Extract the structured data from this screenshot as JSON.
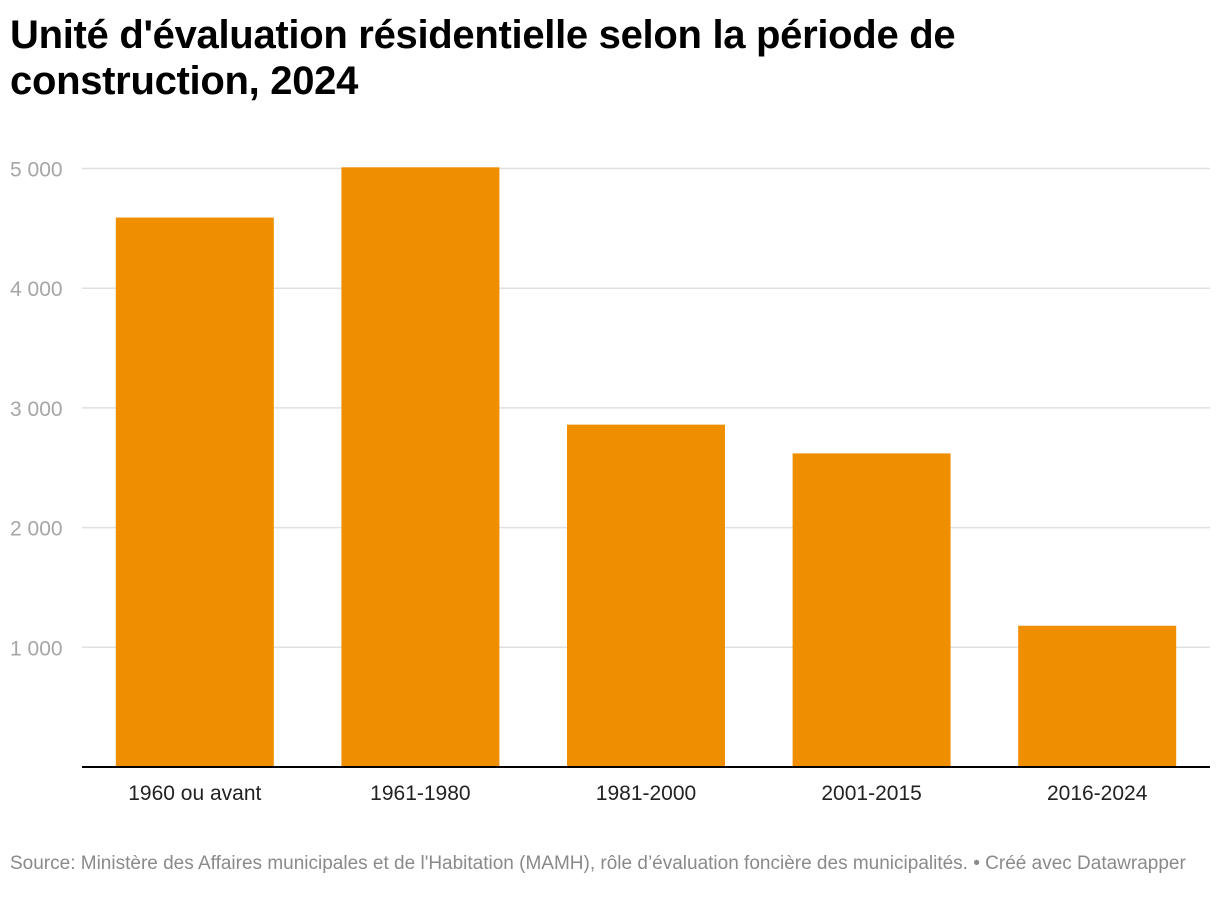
{
  "title": "Unité d'évaluation résidentielle selon la période de construction, 2024",
  "source_text": "Source: Ministère des Affaires municipales et de l'Habitation (MAMH), rôle d’évaluation foncière des municipalités. • Créé avec Datawrapper",
  "colors": {
    "bar": "#ef8f00",
    "grid": "#e0e0e0",
    "axis": "#000000"
  },
  "chart_data": {
    "type": "bar",
    "categories": [
      "1960 ou avant",
      "1961-1980",
      "1981-2000",
      "2001-2015",
      "2016-2024"
    ],
    "values": [
      4590,
      5010,
      2860,
      2620,
      1180
    ],
    "ylim": [
      0,
      5000
    ],
    "yticks": [
      1000,
      2000,
      3000,
      4000,
      5000
    ],
    "ytick_labels": [
      "1 000",
      "2 000",
      "3 000",
      "4 000",
      "5 000"
    ],
    "xlabel": "",
    "ylabel": "",
    "grid": true
  }
}
